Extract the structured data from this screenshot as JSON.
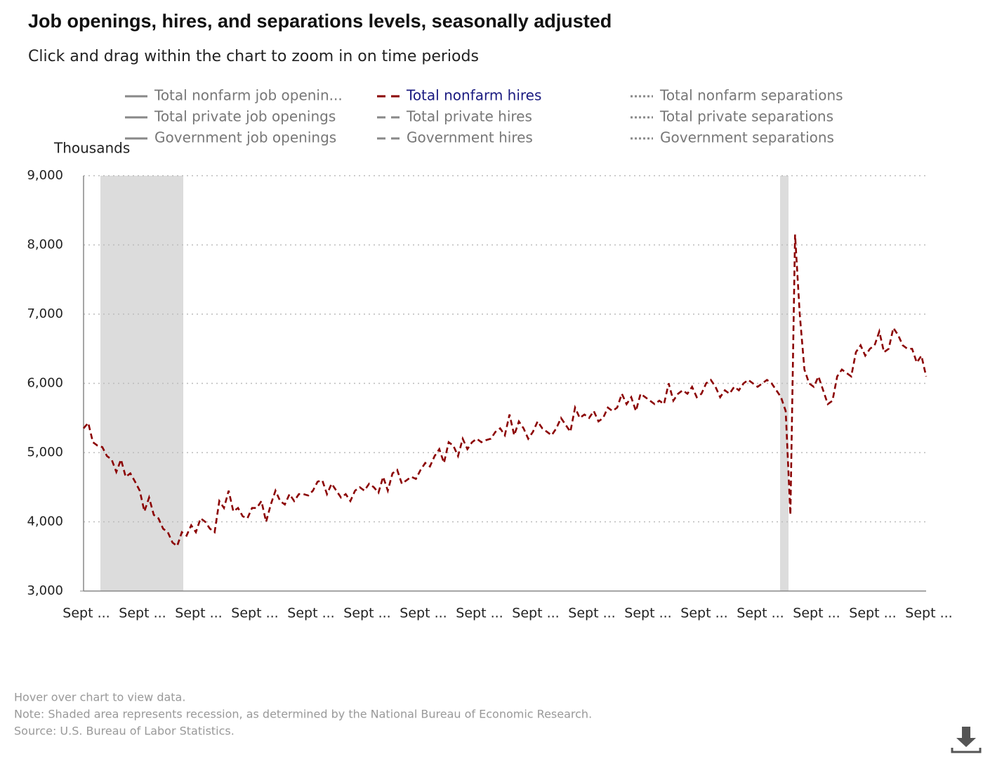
{
  "chart_data": {
    "type": "line",
    "title": "Job openings, hires, and separations levels, seasonally adjusted",
    "subtitle": "Click and drag within the chart to zoom in on time periods",
    "y_label": "Thousands",
    "legend_columns": [
      {
        "style": "solid",
        "names": [
          "Total nonfarm job openin...",
          "Total private job openings",
          "Government job openings"
        ]
      },
      {
        "style": "dashed",
        "names": [
          "Total private hires",
          "Government hires"
        ]
      },
      {
        "style": "dotted",
        "names": [
          "Total nonfarm separations",
          "Total private separations",
          "Government separations"
        ]
      }
    ],
    "categories": [
      "Sept ...",
      null,
      null,
      null,
      null,
      null,
      null,
      null,
      null,
      null,
      null,
      null,
      "Sept ...",
      null,
      null,
      null,
      null,
      null,
      null,
      null,
      null,
      null,
      null,
      null,
      "Sept ...",
      null,
      null,
      null,
      null,
      null,
      null,
      null,
      null,
      null,
      null,
      null,
      "Sept ...",
      null,
      null,
      null,
      null,
      null,
      null,
      null,
      null,
      null,
      null,
      null,
      "Sept ...",
      null,
      null,
      null,
      null,
      null,
      null,
      null,
      null,
      null,
      null,
      null,
      "Sept ...",
      null,
      null,
      null,
      null,
      null,
      null,
      null,
      null,
      null,
      null,
      null,
      "Sept ...",
      null,
      null,
      null,
      null,
      null,
      null,
      null,
      null,
      null,
      null,
      null,
      "Sept ...",
      null,
      null,
      null,
      null,
      null,
      null,
      null,
      null,
      null,
      null,
      null,
      "Sept ...",
      null,
      null,
      null,
      null,
      null,
      null,
      null,
      null,
      null,
      null,
      null,
      "Sept ...",
      null,
      null,
      null,
      null,
      null,
      null,
      null,
      null,
      null,
      null,
      null,
      "Sept ...",
      null,
      null,
      null,
      null,
      null,
      null,
      null,
      null,
      null,
      null,
      null,
      "Sept ...",
      null,
      null,
      null,
      null,
      null,
      null,
      null,
      null,
      null,
      null,
      null,
      "Sept ...",
      null,
      null,
      null,
      null,
      null,
      null,
      null,
      null,
      null,
      null,
      null,
      "Sept ...",
      null,
      null,
      null,
      null,
      null,
      null,
      null,
      null,
      null,
      null,
      null,
      "Sept ...",
      null,
      null,
      null,
      null,
      null,
      null,
      null,
      null,
      null,
      null,
      null,
      "Sept ..."
    ],
    "series": [
      {
        "name": "Total nonfarm hires",
        "color": "#8b0000",
        "values": [
          5350,
          5430,
          5150,
          5100,
          5080,
          4950,
          4900,
          4720,
          4900,
          4650,
          4700,
          4580,
          4450,
          4150,
          4350,
          4100,
          4050,
          3900,
          3850,
          3700,
          3650,
          3850,
          3800,
          3950,
          3850,
          4050,
          4000,
          3900,
          3850,
          4300,
          4200,
          4450,
          4150,
          4200,
          4080,
          4050,
          4200,
          4200,
          4300,
          4000,
          4250,
          4450,
          4300,
          4250,
          4400,
          4300,
          4400,
          4400,
          4380,
          4450,
          4580,
          4600,
          4400,
          4550,
          4450,
          4350,
          4400,
          4300,
          4450,
          4500,
          4450,
          4550,
          4500,
          4420,
          4650,
          4450,
          4700,
          4750,
          4550,
          4600,
          4650,
          4620,
          4750,
          4850,
          4800,
          4950,
          5050,
          4850,
          5150,
          5100,
          4950,
          5200,
          5050,
          5150,
          5200,
          5150,
          5180,
          5200,
          5300,
          5350,
          5250,
          5550,
          5250,
          5450,
          5350,
          5200,
          5300,
          5450,
          5350,
          5300,
          5250,
          5350,
          5500,
          5400,
          5300,
          5650,
          5500,
          5550,
          5500,
          5600,
          5450,
          5500,
          5650,
          5600,
          5650,
          5850,
          5700,
          5800,
          5600,
          5850,
          5800,
          5750,
          5700,
          5750,
          5700,
          6000,
          5750,
          5850,
          5900,
          5850,
          5950,
          5800,
          5850,
          6000,
          6050,
          5950,
          5800,
          5900,
          5850,
          5950,
          5900,
          6000,
          6050,
          6000,
          5950,
          6000,
          6050,
          6000,
          5900,
          5800,
          5600,
          4100,
          8150,
          7000,
          6200,
          6000,
          5950,
          6100,
          5900,
          5700,
          5750,
          6100,
          6200,
          6150,
          6100,
          6450,
          6550,
          6400,
          6500,
          6550,
          6750,
          6450,
          6500,
          6800,
          6700,
          6550,
          6500,
          6500,
          6300,
          6400,
          6100
        ]
      }
    ],
    "ylim": [
      3000,
      9000
    ],
    "yticks": [
      {
        "value": 3000,
        "label": "3,000"
      },
      {
        "value": 4000,
        "label": "4,000"
      },
      {
        "value": 5000,
        "label": "5,000"
      },
      {
        "value": 6000,
        "label": "6,000"
      },
      {
        "value": 7000,
        "label": "7,000"
      },
      {
        "value": 8000,
        "label": "8,000"
      },
      {
        "value": 9000,
        "label": "9,000"
      }
    ],
    "grid": true,
    "notes": [
      "Hover over chart to view data.",
      "Note: Shaded area represents recession, as determined by the National Bureau of Economic Research.",
      "Source: U.S. Bureau of Labor Statistics."
    ]
  }
}
